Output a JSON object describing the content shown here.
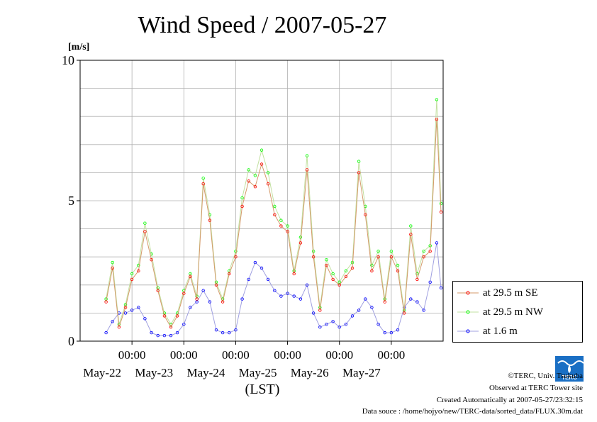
{
  "chart_data": {
    "type": "line",
    "title": "Wind Speed / 2007-05-27",
    "ylabel": "[m/s]",
    "xlabel": "(LST)",
    "ylim": [
      0,
      10
    ],
    "xlim": [
      "2007-05-21 00:00",
      "2007-05-28 00:00"
    ],
    "yticks": [
      "0",
      "5",
      "10"
    ],
    "xticks": [
      {
        "time": "2007-05-22 00:00",
        "top": "00:00",
        "bottom": "May-22"
      },
      {
        "time": "2007-05-23 00:00",
        "top": "00:00",
        "bottom": "May-23"
      },
      {
        "time": "2007-05-24 00:00",
        "top": "00:00",
        "bottom": "May-24"
      },
      {
        "time": "2007-05-25 00:00",
        "top": "00:00",
        "bottom": "May-25"
      },
      {
        "time": "2007-05-26 00:00",
        "top": "00:00",
        "bottom": "May-26"
      },
      {
        "time": "2007-05-27 00:00",
        "top": "00:00",
        "bottom": "May-27"
      }
    ],
    "grid": true,
    "legend_position": "bottom-right",
    "x": [
      "2007-05-21 12:00",
      "2007-05-21 15:00",
      "2007-05-21 18:00",
      "2007-05-21 21:00",
      "2007-05-22 00:00",
      "2007-05-22 03:00",
      "2007-05-22 06:00",
      "2007-05-22 09:00",
      "2007-05-22 12:00",
      "2007-05-22 15:00",
      "2007-05-22 18:00",
      "2007-05-22 21:00",
      "2007-05-23 00:00",
      "2007-05-23 03:00",
      "2007-05-23 06:00",
      "2007-05-23 09:00",
      "2007-05-23 12:00",
      "2007-05-23 15:00",
      "2007-05-23 18:00",
      "2007-05-23 21:00",
      "2007-05-24 00:00",
      "2007-05-24 03:00",
      "2007-05-24 06:00",
      "2007-05-24 09:00",
      "2007-05-24 12:00",
      "2007-05-24 15:00",
      "2007-05-24 18:00",
      "2007-05-24 21:00",
      "2007-05-25 00:00",
      "2007-05-25 03:00",
      "2007-05-25 06:00",
      "2007-05-25 09:00",
      "2007-05-25 12:00",
      "2007-05-25 15:00",
      "2007-05-25 18:00",
      "2007-05-25 21:00",
      "2007-05-26 00:00",
      "2007-05-26 03:00",
      "2007-05-26 06:00",
      "2007-05-26 09:00",
      "2007-05-26 12:00",
      "2007-05-26 15:00",
      "2007-05-26 18:00",
      "2007-05-26 21:00",
      "2007-05-27 00:00",
      "2007-05-27 03:00",
      "2007-05-27 06:00",
      "2007-05-27 09:00",
      "2007-05-27 12:00",
      "2007-05-27 15:00",
      "2007-05-27 18:00",
      "2007-05-27 21:00",
      "2007-05-27 23:00"
    ],
    "series": [
      {
        "name": "at 29.5 m SE",
        "color": "#ff0000",
        "values": [
          1.4,
          2.6,
          0.5,
          1.2,
          2.2,
          2.5,
          3.9,
          2.9,
          1.8,
          0.9,
          0.5,
          0.9,
          1.7,
          2.3,
          1.5,
          5.6,
          4.3,
          2.0,
          1.4,
          2.4,
          3.0,
          4.8,
          5.7,
          5.5,
          6.3,
          5.6,
          4.5,
          4.1,
          3.9,
          2.4,
          3.5,
          6.1,
          3.0,
          1.1,
          2.7,
          2.2,
          2.0,
          2.3,
          2.6,
          6.0,
          4.5,
          2.5,
          3.0,
          1.4,
          3.0,
          2.5,
          1.0,
          3.8,
          2.2,
          3.0,
          3.2,
          7.9,
          4.6
        ]
      },
      {
        "name": "at 29.5 m NW",
        "color": "#00ff00",
        "values": [
          1.5,
          2.8,
          0.6,
          1.3,
          2.4,
          2.7,
          4.2,
          3.1,
          1.9,
          1.0,
          0.6,
          1.0,
          1.8,
          2.4,
          1.6,
          5.8,
          4.5,
          2.1,
          1.5,
          2.5,
          3.2,
          5.1,
          6.1,
          5.9,
          6.8,
          6.0,
          4.8,
          4.3,
          4.1,
          2.5,
          3.7,
          6.6,
          3.2,
          1.2,
          2.9,
          2.4,
          2.1,
          2.5,
          2.8,
          6.4,
          4.8,
          2.7,
          3.2,
          1.5,
          3.2,
          2.7,
          1.1,
          4.1,
          2.4,
          3.2,
          3.4,
          8.6,
          4.9
        ]
      },
      {
        "name": "at 1.6 m",
        "color": "#0000ff",
        "values": [
          0.3,
          0.7,
          1.0,
          1.0,
          1.1,
          1.2,
          0.8,
          0.3,
          0.2,
          0.2,
          0.2,
          0.3,
          0.6,
          1.2,
          1.4,
          1.8,
          1.4,
          0.4,
          0.3,
          0.3,
          0.4,
          1.5,
          2.2,
          2.8,
          2.6,
          2.2,
          1.8,
          1.6,
          1.7,
          1.6,
          1.5,
          2.0,
          1.0,
          0.5,
          0.6,
          0.7,
          0.5,
          0.6,
          0.9,
          1.1,
          1.5,
          1.2,
          0.6,
          0.3,
          0.3,
          0.4,
          1.2,
          1.5,
          1.4,
          1.1,
          2.1,
          3.5,
          1.9
        ]
      }
    ]
  },
  "footer": {
    "copyright": "©TERC, Univ. Tsukuba",
    "observed": "Observed at TERC Tower site",
    "created": "Created Automatically at 2007-05-27/23:32:15",
    "source": "Data souce : /home/hojyo/new/TERC-data/sorted_data/FLUX.30m.dat"
  },
  "logo": {
    "text": "TERC",
    "color": "#1a6fc4"
  }
}
